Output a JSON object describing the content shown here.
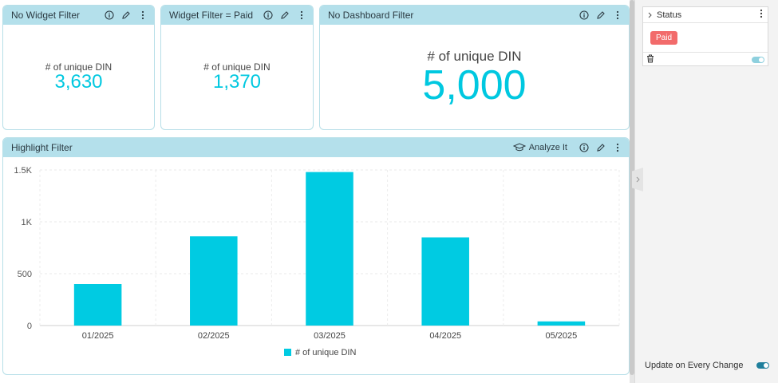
{
  "widgets": {
    "no_widget_filter": {
      "title": "No Widget Filter",
      "label": "# of unique DIN",
      "value": "3,630"
    },
    "widget_filter_paid": {
      "title": "Widget Filter = Paid",
      "label": "# of unique DIN",
      "value": "1,370"
    },
    "no_dashboard_filter": {
      "title": "No Dashboard Filter",
      "label": "# of unique DIN",
      "value": "5,000"
    },
    "highlight_filter": {
      "title": "Highlight Filter",
      "analyze_label": "Analyze It"
    }
  },
  "chart_data": {
    "type": "bar",
    "categories": [
      "01/2025",
      "02/2025",
      "03/2025",
      "04/2025",
      "05/2025"
    ],
    "series": [
      {
        "name": "# of unique DIN",
        "values": [
          400,
          860,
          1480,
          850,
          40
        ],
        "color": "#00cbe2"
      }
    ],
    "ylim": [
      0,
      1500
    ],
    "yticks": [
      0,
      500,
      1000,
      1500
    ],
    "ytick_labels": [
      "0",
      "500",
      "1K",
      "1.5K"
    ],
    "grid": true,
    "legend": "bottom"
  },
  "filter_panel": {
    "filter_title": "Status",
    "chip_label": "Paid",
    "update_label": "Update on Every Change"
  },
  "colors": {
    "accent": "#00c8e0",
    "header": "#b4e0eb",
    "chip": "#f26b6b",
    "toggle": "#2a98b5"
  }
}
